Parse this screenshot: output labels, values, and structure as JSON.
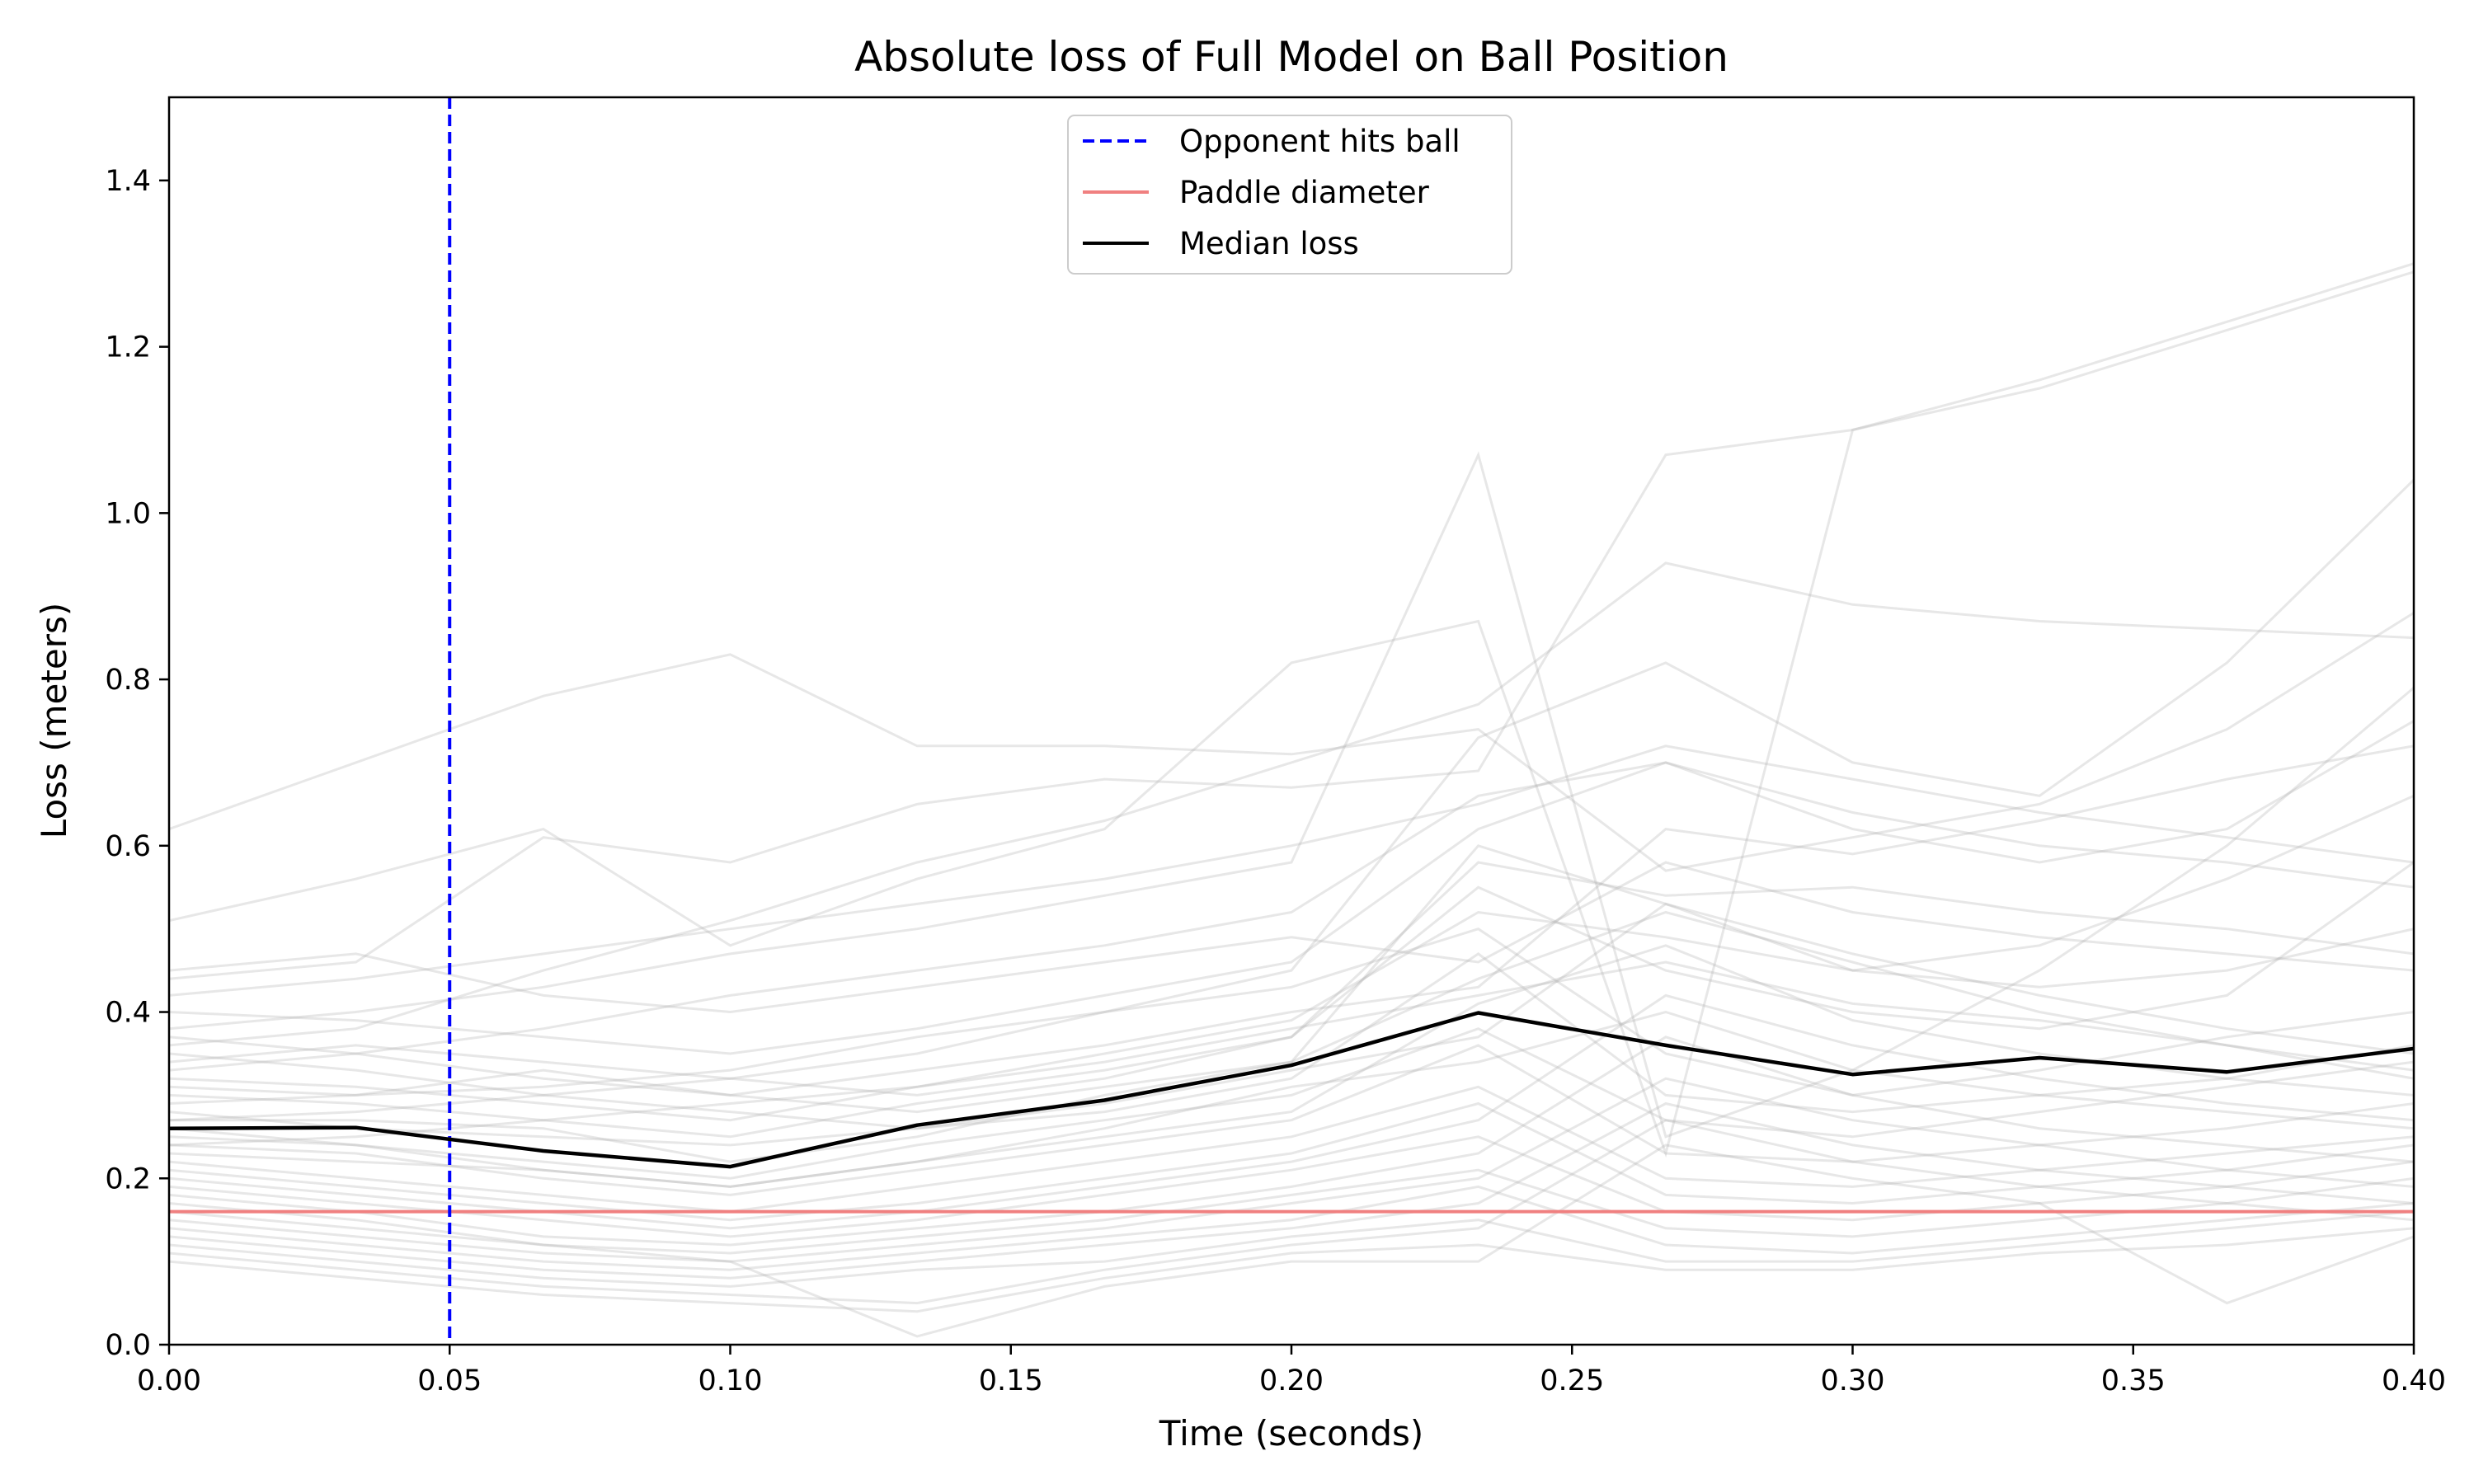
{
  "chart_data": {
    "type": "line",
    "title": "Absolute loss of Full Model on Ball Position",
    "xlabel": "Time (seconds)",
    "ylabel": "Loss (meters)",
    "xlim": [
      0.0,
      0.4
    ],
    "ylim": [
      0.0,
      1.5
    ],
    "xticks": [
      0.0,
      0.05,
      0.1,
      0.15,
      0.2,
      0.25,
      0.3,
      0.35,
      0.4
    ],
    "xtick_labels": [
      "0.00",
      "0.05",
      "0.10",
      "0.15",
      "0.20",
      "0.25",
      "0.30",
      "0.35",
      "0.40"
    ],
    "yticks": [
      0.0,
      0.2,
      0.4,
      0.6,
      0.8,
      1.0,
      1.2,
      1.4
    ],
    "ytick_labels": [
      "0.0",
      "0.2",
      "0.4",
      "0.6",
      "0.8",
      "1.0",
      "1.2",
      "1.4"
    ],
    "grid": false,
    "legend_position": "top-center",
    "legend": [
      {
        "label": "Opponent hits ball",
        "style": "dashed",
        "color": "#0000ff"
      },
      {
        "label": "Paddle diameter",
        "style": "solid",
        "color": "#f08080"
      },
      {
        "label": "Median loss",
        "style": "solid",
        "color": "#000000"
      }
    ],
    "opponent_hits_ball_time": 0.05,
    "paddle_diameter": 0.16,
    "x": [
      0.0,
      0.0333,
      0.0667,
      0.1,
      0.1333,
      0.1667,
      0.2,
      0.2333,
      0.2667,
      0.3,
      0.3333,
      0.3667,
      0.4
    ],
    "median_loss": [
      0.26,
      0.261,
      0.233,
      0.214,
      0.264,
      0.294,
      0.336,
      0.399,
      0.36,
      0.325,
      0.345,
      0.328,
      0.356
    ],
    "trajectory_color": "#b0b0b0",
    "trajectories": [
      [
        0.62,
        0.7,
        0.78,
        0.83,
        0.72,
        0.72,
        0.71,
        0.74,
        0.57,
        0.61,
        0.65,
        0.74,
        0.88
      ],
      [
        0.51,
        0.56,
        0.62,
        0.48,
        0.56,
        0.62,
        0.82,
        0.87,
        0.23,
        1.1,
        1.16,
        1.23,
        1.3
      ],
      [
        0.44,
        0.46,
        0.61,
        0.58,
        0.65,
        0.68,
        0.67,
        0.69,
        1.07,
        1.1,
        1.15,
        1.22,
        1.29
      ],
      [
        0.38,
        0.4,
        0.43,
        0.47,
        0.5,
        0.54,
        0.58,
        1.07,
        0.25,
        0.33,
        0.45,
        0.6,
        0.79
      ],
      [
        0.36,
        0.38,
        0.45,
        0.51,
        0.58,
        0.63,
        0.7,
        0.77,
        0.94,
        0.89,
        0.87,
        0.86,
        0.85
      ],
      [
        0.35,
        0.33,
        0.3,
        0.32,
        0.35,
        0.4,
        0.45,
        0.73,
        0.82,
        0.7,
        0.66,
        0.82,
        1.04
      ],
      [
        0.33,
        0.35,
        0.38,
        0.42,
        0.45,
        0.48,
        0.52,
        0.66,
        0.7,
        0.62,
        0.58,
        0.62,
        0.75
      ],
      [
        0.31,
        0.3,
        0.33,
        0.3,
        0.28,
        0.31,
        0.34,
        0.6,
        0.53,
        0.45,
        0.48,
        0.56,
        0.66
      ],
      [
        0.3,
        0.29,
        0.27,
        0.25,
        0.29,
        0.32,
        0.37,
        0.55,
        0.45,
        0.4,
        0.38,
        0.42,
        0.58
      ],
      [
        0.29,
        0.3,
        0.31,
        0.33,
        0.37,
        0.4,
        0.43,
        0.5,
        0.35,
        0.3,
        0.33,
        0.37,
        0.4
      ],
      [
        0.28,
        0.26,
        0.25,
        0.24,
        0.26,
        0.28,
        0.32,
        0.47,
        0.3,
        0.28,
        0.3,
        0.32,
        0.36
      ],
      [
        0.27,
        0.27,
        0.26,
        0.22,
        0.25,
        0.3,
        0.34,
        0.44,
        0.52,
        0.46,
        0.4,
        0.36,
        0.33
      ],
      [
        0.26,
        0.24,
        0.21,
        0.19,
        0.22,
        0.25,
        0.28,
        0.41,
        0.48,
        0.39,
        0.35,
        0.32,
        0.3
      ],
      [
        0.25,
        0.24,
        0.22,
        0.2,
        0.24,
        0.27,
        0.3,
        0.38,
        0.27,
        0.25,
        0.28,
        0.31,
        0.34
      ],
      [
        0.24,
        0.23,
        0.2,
        0.18,
        0.21,
        0.24,
        0.27,
        0.36,
        0.23,
        0.22,
        0.24,
        0.26,
        0.29
      ],
      [
        0.23,
        0.22,
        0.21,
        0.19,
        0.22,
        0.26,
        0.31,
        0.34,
        0.4,
        0.33,
        0.3,
        0.28,
        0.26
      ],
      [
        0.22,
        0.2,
        0.18,
        0.16,
        0.19,
        0.22,
        0.25,
        0.31,
        0.2,
        0.19,
        0.21,
        0.23,
        0.25
      ],
      [
        0.21,
        0.19,
        0.17,
        0.15,
        0.17,
        0.2,
        0.23,
        0.29,
        0.18,
        0.17,
        0.19,
        0.21,
        0.24
      ],
      [
        0.2,
        0.18,
        0.16,
        0.14,
        0.16,
        0.19,
        0.22,
        0.27,
        0.42,
        0.36,
        0.32,
        0.29,
        0.27
      ],
      [
        0.19,
        0.17,
        0.15,
        0.13,
        0.15,
        0.18,
        0.21,
        0.25,
        0.16,
        0.15,
        0.17,
        0.19,
        0.22
      ],
      [
        0.18,
        0.16,
        0.13,
        0.12,
        0.14,
        0.16,
        0.19,
        0.23,
        0.37,
        0.3,
        0.26,
        0.24,
        0.22
      ],
      [
        0.17,
        0.15,
        0.12,
        0.11,
        0.13,
        0.15,
        0.18,
        0.21,
        0.14,
        0.13,
        0.15,
        0.17,
        0.2
      ],
      [
        0.15,
        0.13,
        0.11,
        0.1,
        0.12,
        0.14,
        0.17,
        0.2,
        0.32,
        0.27,
        0.24,
        0.21,
        0.19
      ],
      [
        0.14,
        0.12,
        0.1,
        0.09,
        0.11,
        0.13,
        0.15,
        0.19,
        0.12,
        0.11,
        0.13,
        0.15,
        0.17
      ],
      [
        0.13,
        0.11,
        0.09,
        0.08,
        0.1,
        0.12,
        0.14,
        0.17,
        0.29,
        0.24,
        0.21,
        0.19,
        0.17
      ],
      [
        0.12,
        0.1,
        0.08,
        0.07,
        0.09,
        0.1,
        0.13,
        0.15,
        0.1,
        0.1,
        0.12,
        0.14,
        0.16
      ],
      [
        0.11,
        0.09,
        0.07,
        0.06,
        0.05,
        0.09,
        0.12,
        0.14,
        0.27,
        0.22,
        0.19,
        0.17,
        0.15
      ],
      [
        0.1,
        0.08,
        0.06,
        0.05,
        0.04,
        0.08,
        0.11,
        0.12,
        0.09,
        0.09,
        0.11,
        0.12,
        0.14
      ],
      [
        0.16,
        0.14,
        0.12,
        0.1,
        0.01,
        0.07,
        0.1,
        0.1,
        0.24,
        0.2,
        0.17,
        0.05,
        0.13
      ],
      [
        0.42,
        0.44,
        0.47,
        0.5,
        0.53,
        0.56,
        0.6,
        0.65,
        0.72,
        0.68,
        0.64,
        0.61,
        0.58
      ],
      [
        0.4,
        0.39,
        0.37,
        0.35,
        0.38,
        0.42,
        0.46,
        0.62,
        0.7,
        0.64,
        0.6,
        0.58,
        0.55
      ],
      [
        0.34,
        0.36,
        0.34,
        0.32,
        0.3,
        0.33,
        0.37,
        0.58,
        0.54,
        0.55,
        0.52,
        0.5,
        0.47
      ],
      [
        0.32,
        0.31,
        0.29,
        0.27,
        0.31,
        0.35,
        0.39,
        0.52,
        0.49,
        0.45,
        0.43,
        0.45,
        0.5
      ],
      [
        0.45,
        0.47,
        0.42,
        0.4,
        0.43,
        0.46,
        0.49,
        0.46,
        0.58,
        0.52,
        0.49,
        0.47,
        0.45
      ],
      [
        0.37,
        0.35,
        0.32,
        0.3,
        0.33,
        0.36,
        0.4,
        0.43,
        0.62,
        0.59,
        0.63,
        0.68,
        0.72
      ],
      [
        0.27,
        0.28,
        0.3,
        0.28,
        0.26,
        0.29,
        0.33,
        0.37,
        0.53,
        0.47,
        0.42,
        0.38,
        0.35
      ],
      [
        0.24,
        0.25,
        0.27,
        0.29,
        0.31,
        0.34,
        0.38,
        0.42,
        0.46,
        0.41,
        0.39,
        0.36,
        0.32
      ]
    ]
  }
}
